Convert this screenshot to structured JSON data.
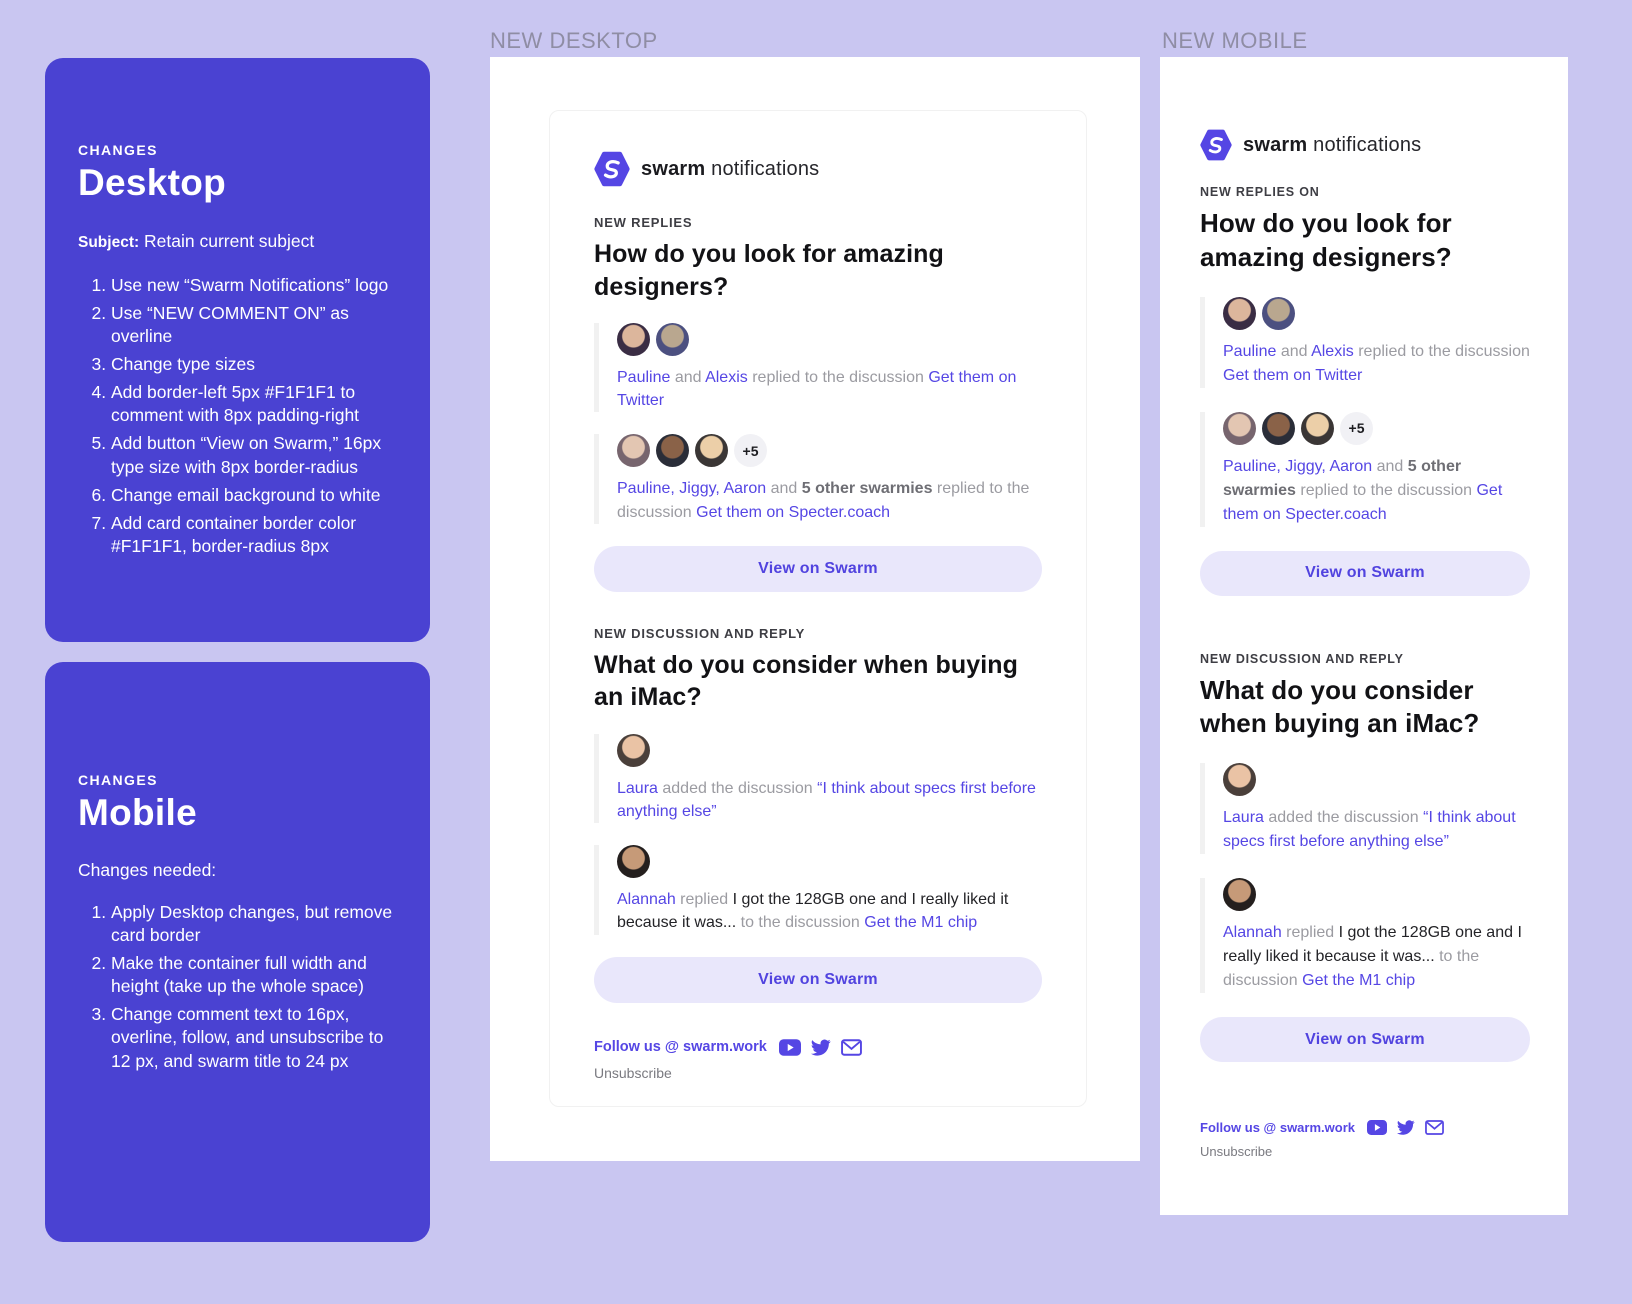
{
  "colors": {
    "bg": "#C9C6F1",
    "panel": "#4A42D2",
    "accent": "#5546E4",
    "btnbg": "#E9E7FB",
    "cardborder": "#F1F1F1",
    "graytext": "#9B9BA1",
    "graybold": "#6E6E74",
    "dark": "#232327",
    "headline": "#121215",
    "overline": "#3E3E44",
    "label": "#8F8DA4",
    "unsub": "#7A7A80"
  },
  "section_labels": {
    "desktop": "NEW DESKTOP",
    "mobile": "NEW MOBILE"
  },
  "panels": {
    "desktop": {
      "overline": "CHANGES",
      "title": "Desktop",
      "subject_label": "Subject:",
      "subject_text": "Retain current subject",
      "items": [
        "Use new “Swarm Notifications” logo",
        "Use “NEW COMMENT ON” as overline",
        "Change type sizes",
        "Add border-left 5px #F1F1F1 to comment with 8px padding-right",
        "Add button “View on Swarm,” 16px type size with 8px border-radius",
        "Change email background to white",
        "Add card container border color #F1F1F1, border-radius 8px"
      ]
    },
    "mobile": {
      "overline": "CHANGES",
      "title": "Mobile",
      "intro": "Changes needed:",
      "items": [
        "Apply Desktop changes, but remove card border",
        "Make the container full width and height (take up the whole space)",
        "Change comment text to 16px, overline, follow, and unsubscribe to 12 px, and swarm title to 24 px"
      ]
    }
  },
  "email": {
    "brand": {
      "bold": "swarm",
      "light": "notifications",
      "logo_icon": "swarm-hexagon-logo-icon"
    },
    "sections": [
      {
        "overline_desktop": "NEW REPLIES",
        "overline_mobile": "NEW REPLIES ON",
        "title": "How do you look for amazing designers?",
        "button": "View on Swarm",
        "comments": [
          {
            "avatars": [
              "pauline1",
              "alexis"
            ],
            "segments": [
              {
                "t": "Pauline",
                "s": "link"
              },
              {
                "t": " and ",
                "s": "gray"
              },
              {
                "t": "Alexis",
                "s": "link"
              },
              {
                "t": " replied to the discussion ",
                "s": "gray"
              },
              {
                "t": "Get them on Twitter",
                "s": "link"
              }
            ]
          },
          {
            "avatars": [
              "pauline2",
              "jiggy",
              "aaron",
              "+5"
            ],
            "segments": [
              {
                "t": "Pauline, Jiggy, Aaron",
                "s": "link"
              },
              {
                "t": " and ",
                "s": "gray"
              },
              {
                "t": "5 other swarmies",
                "s": "gb"
              },
              {
                "t": " replied to the discussion ",
                "s": "gray"
              },
              {
                "t": "Get them on Specter.coach",
                "s": "link"
              }
            ]
          }
        ]
      },
      {
        "overline_desktop": "NEW DISCUSSION AND REPLY",
        "overline_mobile": "NEW DISCUSSION AND REPLY",
        "title": "What do you consider when buying an iMac?",
        "button": "View on Swarm",
        "comments": [
          {
            "avatars": [
              "laura"
            ],
            "segments": [
              {
                "t": "Laura",
                "s": "link"
              },
              {
                "t": " added the discussion ",
                "s": "gray"
              },
              {
                "t": "“I think about specs first before anything else”",
                "s": "link"
              }
            ]
          },
          {
            "avatars": [
              "alannah"
            ],
            "segments": [
              {
                "t": "Alannah",
                "s": "link"
              },
              {
                "t": " replied ",
                "s": "gray"
              },
              {
                "t": "I got the 128GB one and I really liked it because it was... ",
                "s": "dark"
              },
              {
                "t": "to the discussion ",
                "s": "gray"
              },
              {
                "t": "Get the M1 chip",
                "s": "link"
              }
            ]
          }
        ]
      }
    ],
    "footer": {
      "follow": "Follow us @ swarm.work",
      "unsubscribe": "Unsubscribe",
      "icons": [
        "youtube-icon",
        "twitter-icon",
        "mail-icon"
      ]
    }
  }
}
